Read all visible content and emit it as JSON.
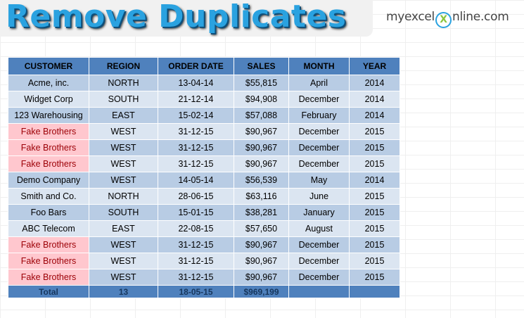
{
  "title": "Remove Duplicates",
  "logo": {
    "part1": "myexcel",
    "x": "X",
    "part2": "nline.com"
  },
  "table": {
    "headers": [
      "CUSTOMER",
      "REGION",
      "ORDER DATE",
      "SALES",
      "MONTH",
      "YEAR"
    ],
    "rows": [
      {
        "customer": "Acme, inc.",
        "region": "NORTH",
        "date": "13-04-14",
        "sales": "$55,815",
        "month": "April",
        "year": "2014",
        "duplicate": false
      },
      {
        "customer": "Widget Corp",
        "region": "SOUTH",
        "date": "21-12-14",
        "sales": "$94,908",
        "month": "December",
        "year": "2014",
        "duplicate": false
      },
      {
        "customer": "123 Warehousing",
        "region": "EAST",
        "date": "15-02-14",
        "sales": "$57,088",
        "month": "February",
        "year": "2014",
        "duplicate": false
      },
      {
        "customer": "Fake Brothers",
        "region": "WEST",
        "date": "31-12-15",
        "sales": "$90,967",
        "month": "December",
        "year": "2015",
        "duplicate": true
      },
      {
        "customer": "Fake Brothers",
        "region": "WEST",
        "date": "31-12-15",
        "sales": "$90,967",
        "month": "December",
        "year": "2015",
        "duplicate": true
      },
      {
        "customer": "Fake Brothers",
        "region": "WEST",
        "date": "31-12-15",
        "sales": "$90,967",
        "month": "December",
        "year": "2015",
        "duplicate": true
      },
      {
        "customer": "Demo Company",
        "region": "WEST",
        "date": "14-05-14",
        "sales": "$56,539",
        "month": "May",
        "year": "2014",
        "duplicate": false
      },
      {
        "customer": "Smith and Co.",
        "region": "NORTH",
        "date": "28-06-15",
        "sales": "$63,116",
        "month": "June",
        "year": "2015",
        "duplicate": false
      },
      {
        "customer": "Foo Bars",
        "region": "SOUTH",
        "date": "15-01-15",
        "sales": "$38,281",
        "month": "January",
        "year": "2015",
        "duplicate": false
      },
      {
        "customer": "ABC Telecom",
        "region": "EAST",
        "date": "22-08-15",
        "sales": "$57,650",
        "month": "August",
        "year": "2015",
        "duplicate": false
      },
      {
        "customer": "Fake Brothers",
        "region": "WEST",
        "date": "31-12-15",
        "sales": "$90,967",
        "month": "December",
        "year": "2015",
        "duplicate": true
      },
      {
        "customer": "Fake Brothers",
        "region": "WEST",
        "date": "31-12-15",
        "sales": "$90,967",
        "month": "December",
        "year": "2015",
        "duplicate": true
      },
      {
        "customer": "Fake Brothers",
        "region": "WEST",
        "date": "31-12-15",
        "sales": "$90,967",
        "month": "December",
        "year": "2015",
        "duplicate": true
      }
    ],
    "total": {
      "label": "Total",
      "region": "13",
      "date": "18-05-15",
      "sales": "$969,199",
      "month": "",
      "year": ""
    }
  },
  "colors": {
    "header": "#4f81bd",
    "band_dark": "#b8cce4",
    "band_light": "#dbe5f1",
    "duplicate_fill": "#ffc7ce",
    "duplicate_text": "#9c0006",
    "title": "#2aa2e0"
  }
}
